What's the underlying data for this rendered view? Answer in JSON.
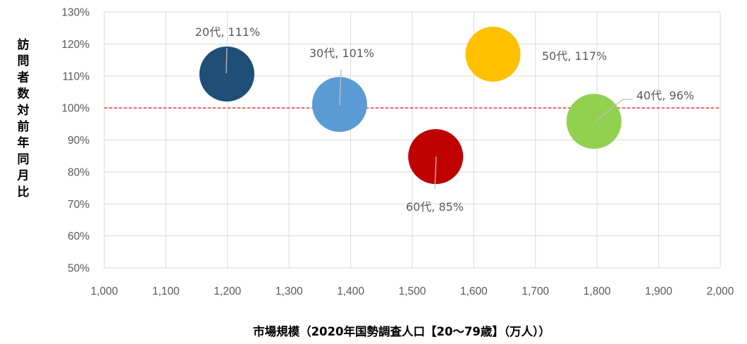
{
  "chart_data": {
    "type": "bubble",
    "xlabel": "市場規模（2020年国勢調査人口【20～79歳】（万人））",
    "ylabel": "訪問者数対前年同月比",
    "xlim": [
      1000,
      2000
    ],
    "ylim": [
      50,
      130
    ],
    "x_ticks": [
      "1,000",
      "1,100",
      "1,200",
      "1,300",
      "1,400",
      "1,500",
      "1,600",
      "1,700",
      "1,800",
      "1,900",
      "2,000"
    ],
    "y_ticks": [
      "50%",
      "60%",
      "70%",
      "80%",
      "90%",
      "100%",
      "110%",
      "120%",
      "130%"
    ],
    "grid": true,
    "reference_line": {
      "y": 100,
      "color": "#ff0000",
      "style": "dashed"
    },
    "series": [
      {
        "label": "20代, 111%",
        "x": 1199,
        "y": 110.6,
        "color": "#1f4e79"
      },
      {
        "label": "30代, 101%",
        "x": 1382,
        "y": 101.1,
        "color": "#5b9bd5"
      },
      {
        "label": "60代, 85%",
        "x": 1538,
        "y": 84.8,
        "color": "#c00000"
      },
      {
        "label": "50代, 117%",
        "x": 1631,
        "y": 116.8,
        "color": "#ffc000"
      },
      {
        "label": "40代, 96%",
        "x": 1795,
        "y": 95.8,
        "color": "#92d050"
      }
    ]
  }
}
